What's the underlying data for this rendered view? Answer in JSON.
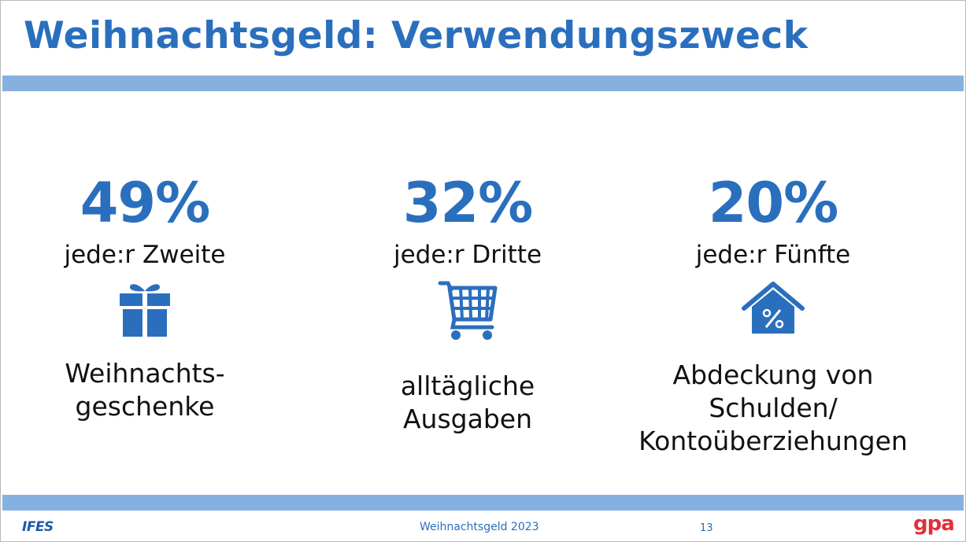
{
  "slide": {
    "title": "Weihnachtsgeld: Verwendungszweck",
    "accent_color": "#2a6fbd",
    "band_color": "#86b0e0"
  },
  "stats": [
    {
      "percent": "49%",
      "share": "jede:r Zweite",
      "icon": "gift-icon",
      "description_lines": [
        "Weihnachts-",
        "geschenke"
      ]
    },
    {
      "percent": "32%",
      "share": "jede:r Dritte",
      "icon": "shopping-cart-icon",
      "description_lines": [
        "alltägliche",
        "Ausgaben"
      ]
    },
    {
      "percent": "20%",
      "share": "jede:r Fünfte",
      "icon": "house-percent-icon",
      "description_lines": [
        "Abdeckung von",
        "Schulden/",
        "Kontoüberziehungen"
      ]
    }
  ],
  "footer": {
    "left_logo": "IFES",
    "center_text": "Weihnachtsgeld 2023",
    "page_number": "13",
    "right_logo": "gpa",
    "right_logo_color": "#e0303a"
  }
}
